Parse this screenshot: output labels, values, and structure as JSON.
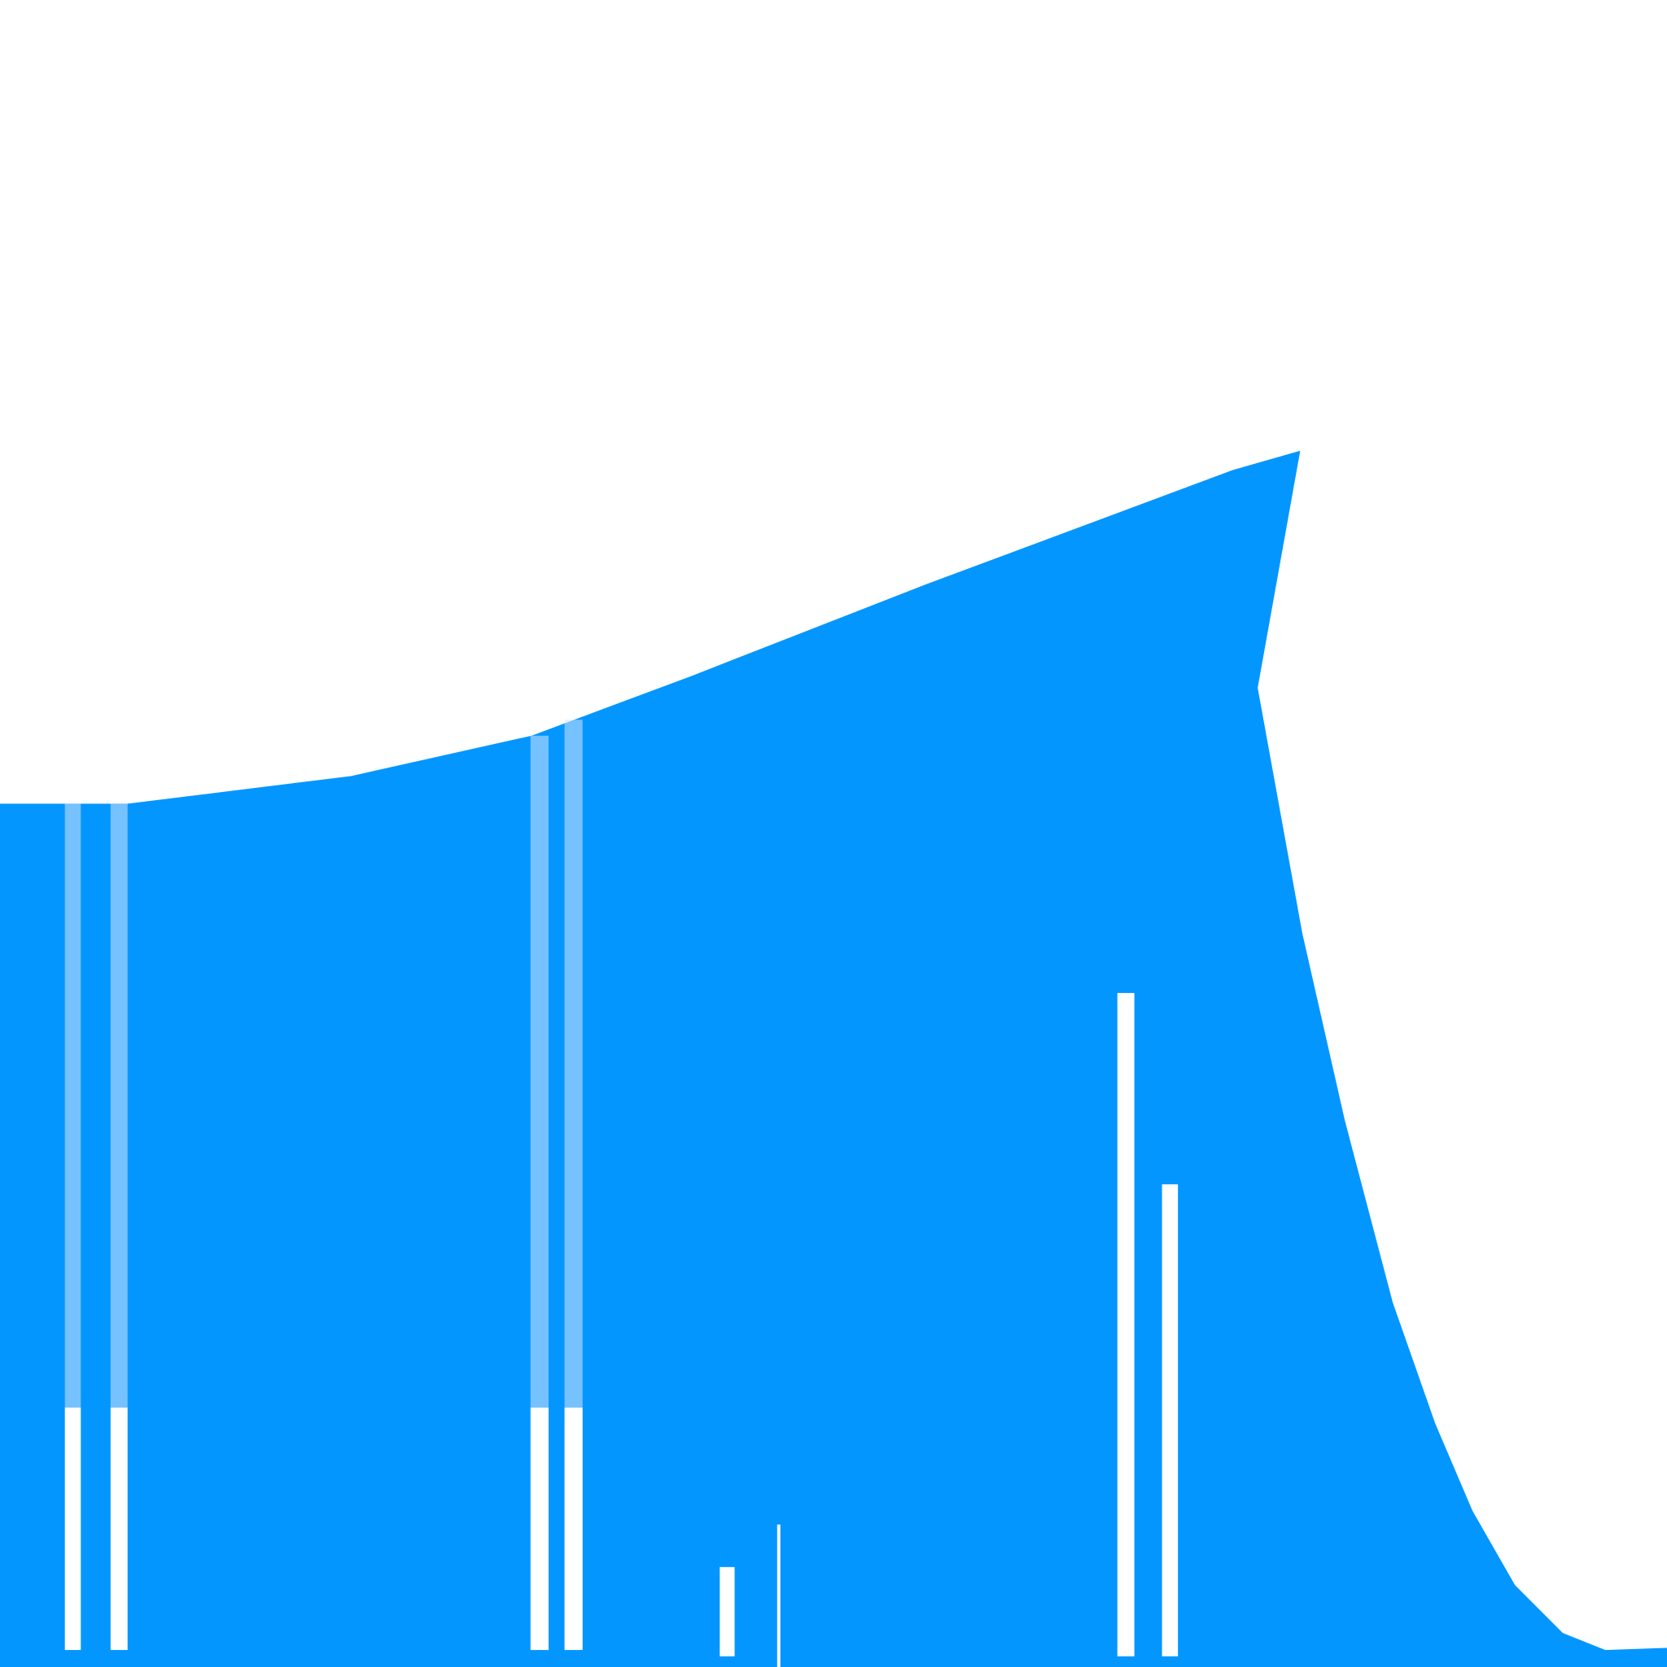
{
  "colors": {
    "area_fill": "#0396FF",
    "background": "#FFFFFF",
    "gap_solid": "#FFFFFF",
    "gap_faint": "#D6E6FF"
  },
  "chart_data": {
    "type": "area",
    "title": "",
    "xlabel": "",
    "ylabel": "",
    "grid": false,
    "legend": "none",
    "xlim": [
      0,
      1568
    ],
    "ylim": [
      0,
      1568
    ],
    "series": [
      {
        "values_note_x": "x values",
        "x": [
          0,
          120,
          330,
          500,
          650,
          870,
          1160,
          1223,
          1183,
          1225,
          1265,
          1310,
          1350,
          1385,
          1425,
          1470,
          1510,
          1568
        ],
        "y": [
          812,
          812,
          838,
          876,
          932,
          1018,
          1126,
          1144,
          921,
          690,
          514,
          343,
          229,
          147,
          77,
          32,
          16,
          18
        ]
      }
    ],
    "gaps": [
      {
        "x0": 61,
        "x1": 76,
        "top": 812,
        "split": 244,
        "bottom": 16
      },
      {
        "x0": 104,
        "x1": 120,
        "top": 812,
        "split": 244,
        "bottom": 16
      },
      {
        "x0": 499,
        "x1": 516,
        "top": 876,
        "split": 244,
        "bottom": 16
      },
      {
        "x0": 531,
        "x1": 548,
        "top": 891,
        "split": 244,
        "bottom": 16
      },
      {
        "x0": 677,
        "x1": 691,
        "top": 94,
        "split": 94,
        "bottom": 10
      },
      {
        "x0": 731,
        "x1": 734,
        "top": 134,
        "split": 134,
        "bottom": 0
      },
      {
        "x0": 1051,
        "x1": 1067,
        "top": 634,
        "split": 634,
        "bottom": 10
      },
      {
        "x0": 1093,
        "x1": 1108,
        "top": 454,
        "split": 454,
        "bottom": 10
      }
    ]
  }
}
